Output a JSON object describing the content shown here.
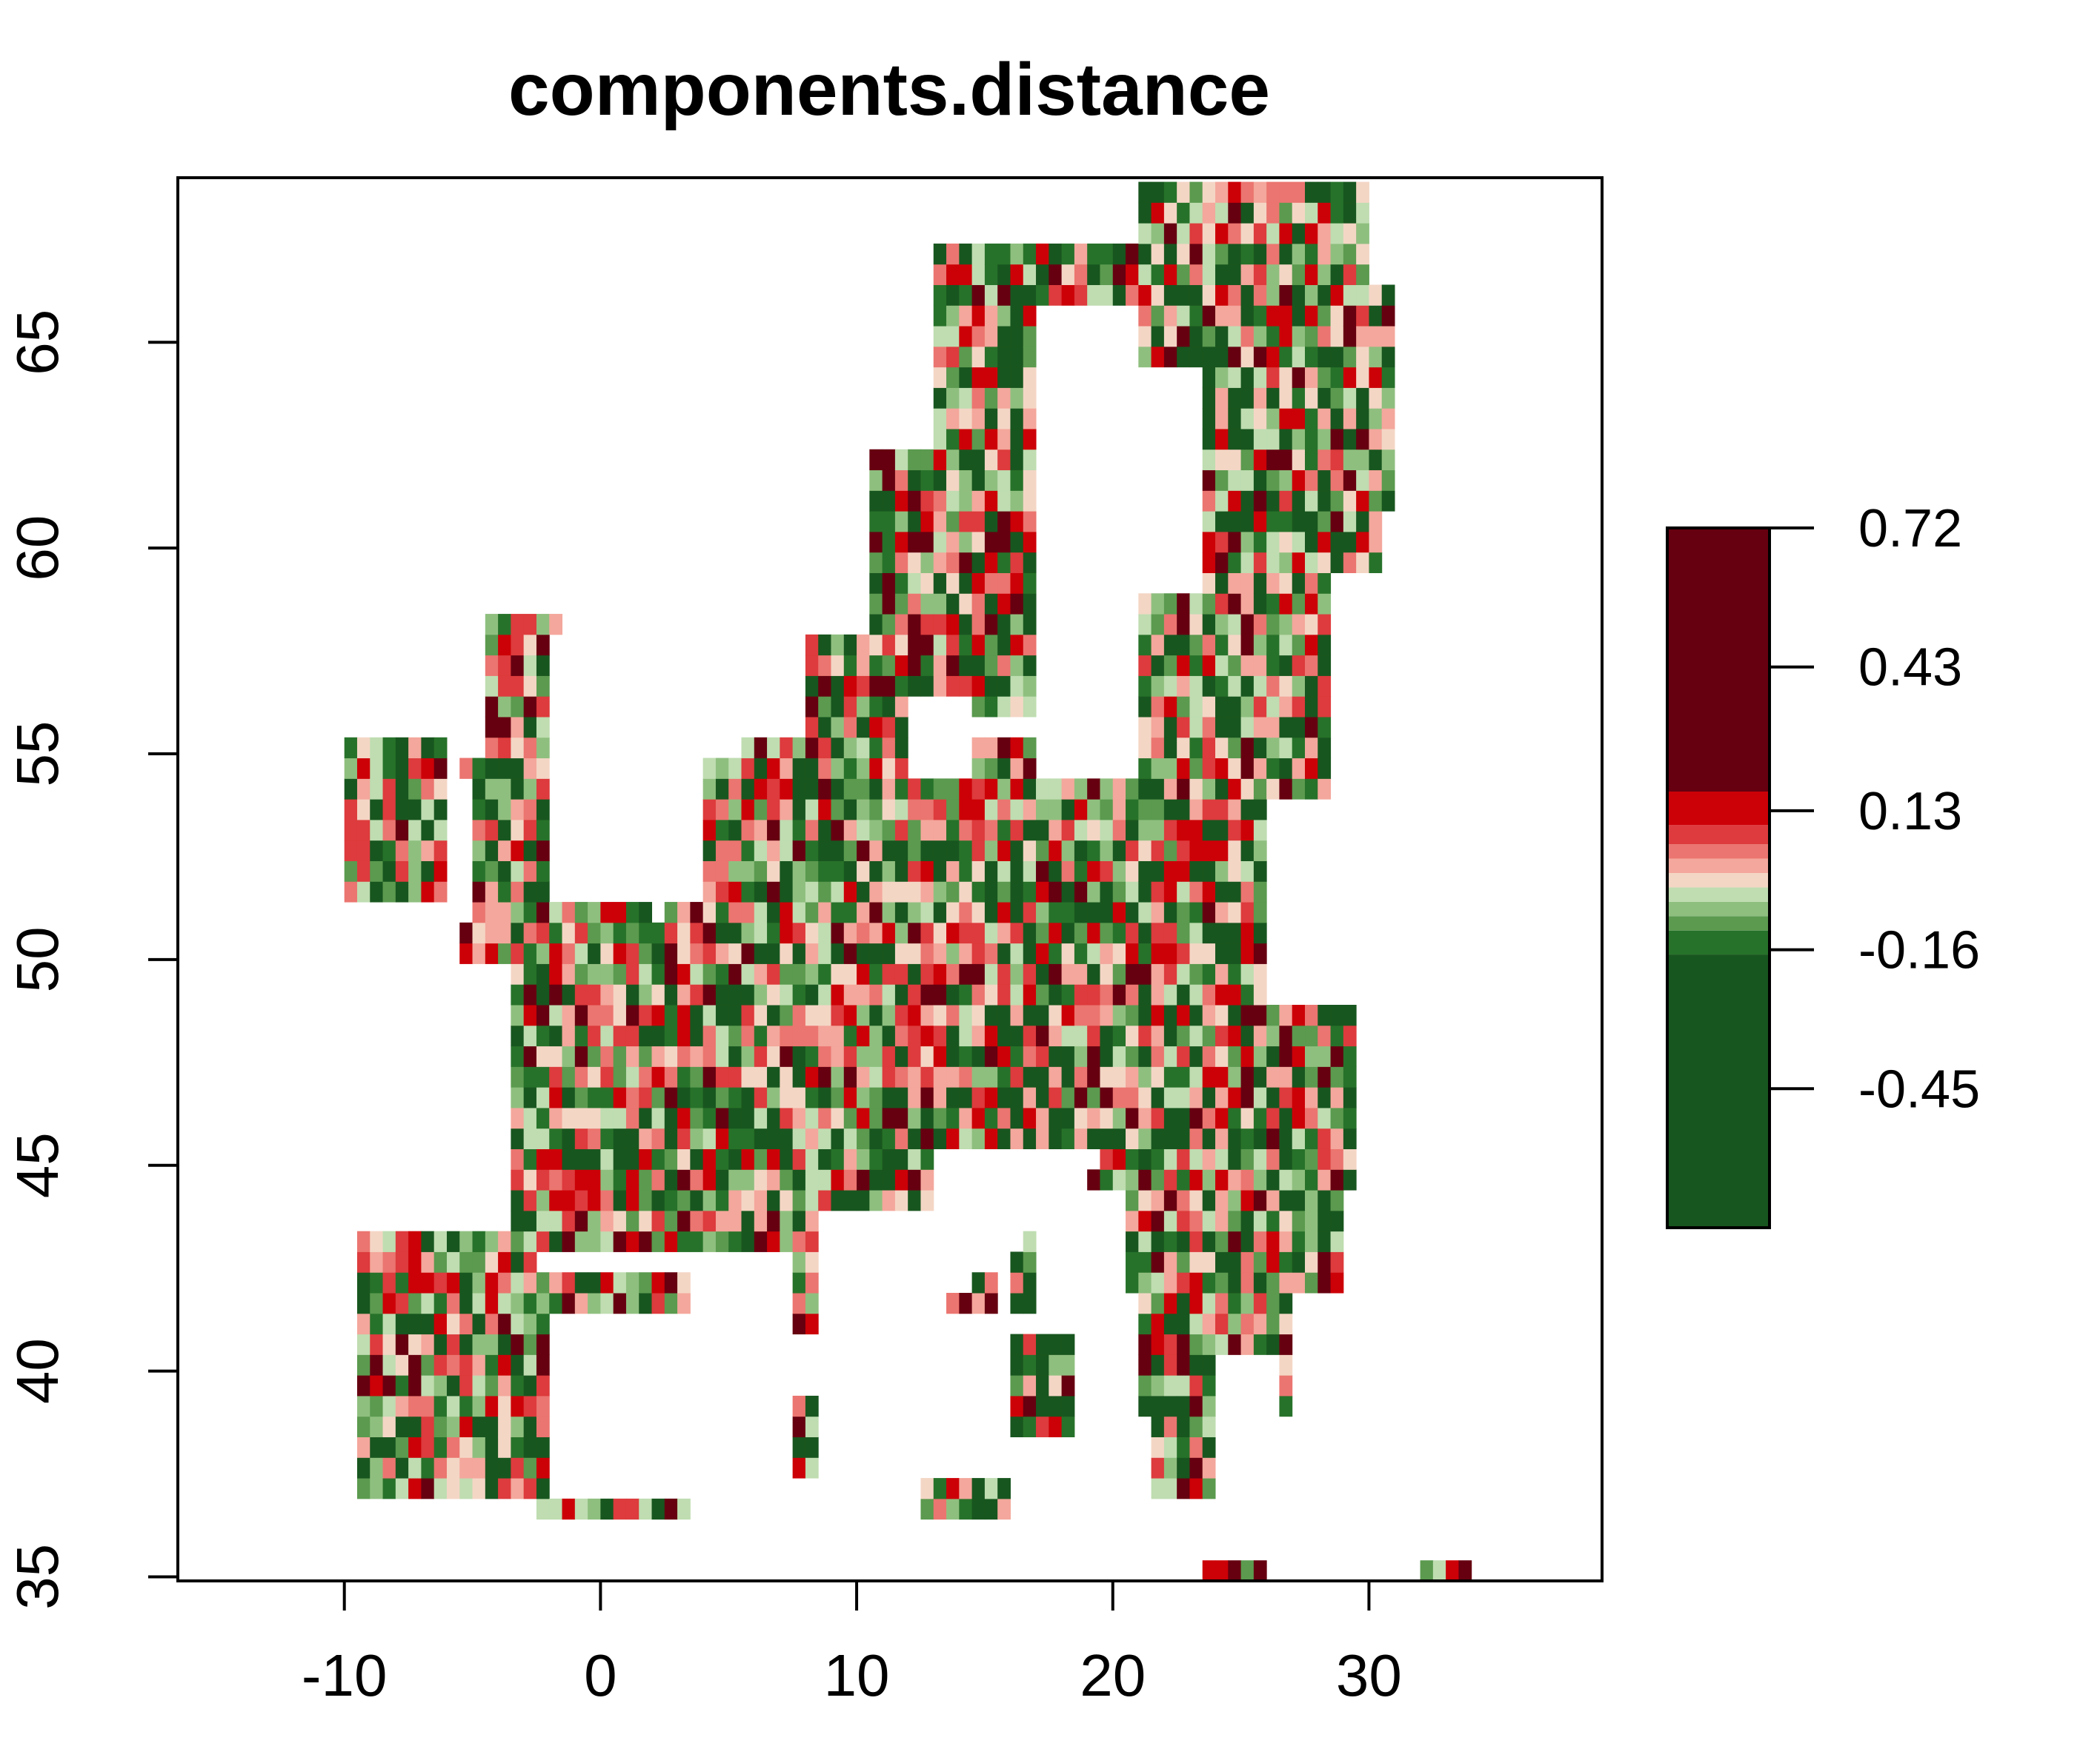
{
  "title": "components.distance",
  "x_axis": {
    "ticks": [
      -10,
      0,
      10,
      20,
      30
    ],
    "range": [
      -16.5,
      39.1
    ]
  },
  "y_axis": {
    "ticks": [
      35,
      40,
      45,
      50,
      55,
      60,
      65
    ],
    "range": [
      34.9,
      69.0
    ]
  },
  "legend": {
    "position": "right",
    "tick_labels": [
      "0.72",
      "0.43",
      "0.13",
      "-0.16",
      "-0.45"
    ],
    "tick_values": [
      0.72,
      0.43,
      0.13,
      -0.16,
      -0.45
    ],
    "bands": [
      {
        "from": -0.74,
        "to": -0.17,
        "color": "#18561f"
      },
      {
        "from": -0.17,
        "to": -0.12,
        "color": "#27722a"
      },
      {
        "from": -0.12,
        "to": -0.09,
        "color": "#5b9a4f"
      },
      {
        "from": -0.09,
        "to": -0.06,
        "color": "#8fbf7f"
      },
      {
        "from": -0.06,
        "to": -0.03,
        "color": "#bfddb1"
      },
      {
        "from": -0.03,
        "to": 0.0,
        "color": "#f4d6c5"
      },
      {
        "from": 0.0,
        "to": 0.03,
        "color": "#f4a79c"
      },
      {
        "from": 0.03,
        "to": 0.06,
        "color": "#eb7570"
      },
      {
        "from": 0.06,
        "to": 0.1,
        "color": "#dd3b3d"
      },
      {
        "from": 0.1,
        "to": 0.17,
        "color": "#cc0007"
      },
      {
        "from": 0.17,
        "to": 0.72,
        "color": "#660010"
      }
    ]
  }
}
